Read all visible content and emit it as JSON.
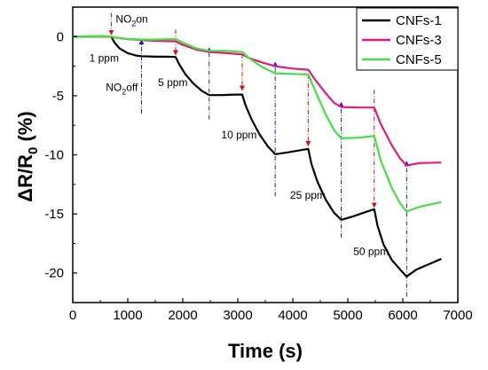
{
  "chart_data": {
    "type": "line",
    "xlabel": "Time (s)",
    "ylabel_main": "ΔR/R",
    "ylabel_sub": "0",
    "ylabel_unit": " (%)",
    "xlim": [
      0,
      7000
    ],
    "ylim": [
      -22.5,
      2.5
    ],
    "xticks": [
      0,
      1000,
      2000,
      3000,
      4000,
      5000,
      6000,
      7000
    ],
    "yticks": [
      0,
      -5,
      -10,
      -15,
      -20
    ],
    "legend_position": "top-right",
    "series": [
      {
        "name": "CNFs-1",
        "color": "#000000",
        "points": [
          [
            0,
            0
          ],
          [
            300,
            0.02
          ],
          [
            550,
            0.03
          ],
          [
            700,
            0
          ],
          [
            760,
            -0.5
          ],
          [
            850,
            -1.0
          ],
          [
            1000,
            -1.4
          ],
          [
            1150,
            -1.6
          ],
          [
            1250,
            -1.65
          ],
          [
            1500,
            -1.7
          ],
          [
            1700,
            -1.7
          ],
          [
            1870,
            -1.72
          ],
          [
            1930,
            -2.3
          ],
          [
            2050,
            -3.2
          ],
          [
            2200,
            -4.0
          ],
          [
            2350,
            -4.6
          ],
          [
            2480,
            -4.95
          ],
          [
            2700,
            -4.95
          ],
          [
            2950,
            -4.9
          ],
          [
            3080,
            -4.9
          ],
          [
            3140,
            -5.8
          ],
          [
            3250,
            -7.0
          ],
          [
            3400,
            -8.3
          ],
          [
            3550,
            -9.3
          ],
          [
            3680,
            -9.95
          ],
          [
            3900,
            -9.8
          ],
          [
            4150,
            -9.6
          ],
          [
            4280,
            -9.5
          ],
          [
            4340,
            -10.8
          ],
          [
            4450,
            -12.3
          ],
          [
            4600,
            -13.8
          ],
          [
            4750,
            -14.9
          ],
          [
            4880,
            -15.5
          ],
          [
            5100,
            -15.2
          ],
          [
            5350,
            -14.8
          ],
          [
            5480,
            -14.6
          ],
          [
            5540,
            -16.0
          ],
          [
            5650,
            -17.6
          ],
          [
            5800,
            -18.9
          ],
          [
            5950,
            -19.7
          ],
          [
            6070,
            -20.3
          ],
          [
            6250,
            -19.7
          ],
          [
            6450,
            -19.3
          ],
          [
            6700,
            -18.8
          ]
        ]
      },
      {
        "name": "CNFs-3",
        "color": "#e6197a",
        "points": [
          [
            0,
            0
          ],
          [
            300,
            0
          ],
          [
            650,
            0
          ],
          [
            700,
            0
          ],
          [
            800,
            -0.1
          ],
          [
            1000,
            -0.2
          ],
          [
            1250,
            -0.3
          ],
          [
            1500,
            -0.35
          ],
          [
            1870,
            -0.4
          ],
          [
            2000,
            -0.7
          ],
          [
            2250,
            -1.1
          ],
          [
            2480,
            -1.3
          ],
          [
            2800,
            -1.4
          ],
          [
            3080,
            -1.5
          ],
          [
            3200,
            -1.8
          ],
          [
            3450,
            -2.2
          ],
          [
            3680,
            -2.5
          ],
          [
            4000,
            -2.7
          ],
          [
            4280,
            -2.8
          ],
          [
            4400,
            -3.6
          ],
          [
            4600,
            -4.8
          ],
          [
            4750,
            -5.6
          ],
          [
            4880,
            -5.95
          ],
          [
            5200,
            -6.0
          ],
          [
            5480,
            -6.0
          ],
          [
            5600,
            -7.4
          ],
          [
            5800,
            -9.2
          ],
          [
            5950,
            -10.3
          ],
          [
            6070,
            -10.9
          ],
          [
            6300,
            -10.7
          ],
          [
            6700,
            -10.65
          ]
        ]
      },
      {
        "name": "CNFs-5",
        "color": "#44e044",
        "points": [
          [
            0,
            0
          ],
          [
            300,
            0.03
          ],
          [
            650,
            0.03
          ],
          [
            700,
            0
          ],
          [
            800,
            -0.1
          ],
          [
            1000,
            -0.2
          ],
          [
            1250,
            -0.25
          ],
          [
            1500,
            -0.25
          ],
          [
            1870,
            -0.2
          ],
          [
            2000,
            -0.5
          ],
          [
            2250,
            -1.0
          ],
          [
            2480,
            -1.2
          ],
          [
            2800,
            -1.2
          ],
          [
            3080,
            -1.3
          ],
          [
            3200,
            -1.8
          ],
          [
            3450,
            -2.6
          ],
          [
            3680,
            -3.1
          ],
          [
            4000,
            -3.15
          ],
          [
            4280,
            -3.2
          ],
          [
            4400,
            -4.5
          ],
          [
            4600,
            -6.6
          ],
          [
            4750,
            -7.9
          ],
          [
            4880,
            -8.6
          ],
          [
            5200,
            -8.55
          ],
          [
            5480,
            -8.4
          ],
          [
            5600,
            -10.5
          ],
          [
            5800,
            -12.8
          ],
          [
            5950,
            -14.1
          ],
          [
            6070,
            -14.8
          ],
          [
            6300,
            -14.4
          ],
          [
            6700,
            -14.0
          ]
        ]
      }
    ],
    "on_markers": [
      {
        "x": 700,
        "y_from": 2.0,
        "y_to": 0.2
      },
      {
        "x": 1870,
        "y_from": 0.6,
        "y_to": -1.5
      },
      {
        "x": 3080,
        "y_from": -1.5,
        "y_to": -4.5
      },
      {
        "x": 4280,
        "y_from": -3.2,
        "y_to": -9.2
      },
      {
        "x": 5480,
        "y_from": -4.5,
        "y_to": -14.4
      }
    ],
    "off_markers": [
      {
        "x": 1250,
        "y_from": -6.5,
        "y_to": -0.3
      },
      {
        "x": 2480,
        "y_from": -7.0,
        "y_to": -1.0
      },
      {
        "x": 3680,
        "y_from": -13.5,
        "y_to": -2.2
      },
      {
        "x": 4880,
        "y_from": -17.0,
        "y_to": -5.6
      },
      {
        "x": 6070,
        "y_from": -22.0,
        "y_to": -10.6
      }
    ],
    "annotations": {
      "no2_on": {
        "x": 780,
        "y": 1.2,
        "main": "NO",
        "sub": "2",
        "rest": "on"
      },
      "no2_off": {
        "x": 600,
        "y": -4.6,
        "main": "NO",
        "sub": "2",
        "rest": "off"
      },
      "conc": [
        {
          "x": 300,
          "y": -2.1,
          "text": "1 ppm"
        },
        {
          "x": 1550,
          "y": -4.2,
          "text": "5 ppm"
        },
        {
          "x": 2700,
          "y": -8.6,
          "text": "10 ppm"
        },
        {
          "x": 3950,
          "y": -13.7,
          "text": "25 ppm"
        },
        {
          "x": 5100,
          "y": -18.5,
          "text": "50 ppm"
        }
      ]
    },
    "on_marker_color": "#cc1111",
    "off_marker_color": "#1020cc"
  }
}
